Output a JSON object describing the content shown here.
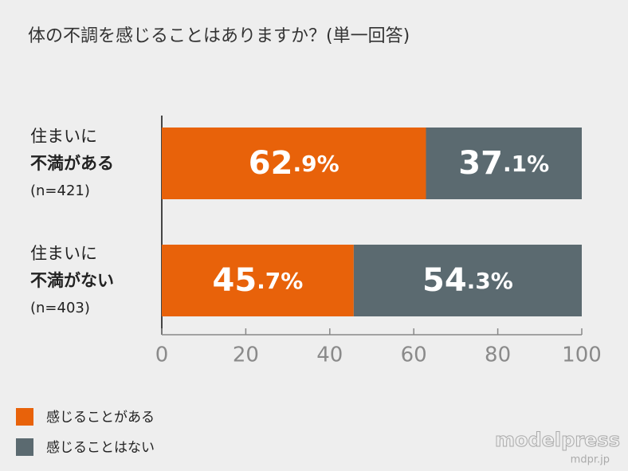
{
  "chart_data": {
    "type": "stacked-bar-horizontal",
    "title": "体の不調を感じることはありますか？(単一回答)",
    "categories": [
      [
        "住まいに",
        "不満がある",
        "(n=421)"
      ],
      [
        "住まいに",
        "不満がない",
        "(n=403)"
      ]
    ],
    "series": [
      {
        "name": "感じることがある",
        "color": "#e8620a",
        "values": [
          62.9,
          45.7
        ],
        "value_labels": [
          "62.9%",
          "45.7%"
        ]
      },
      {
        "name": "感じることはない",
        "color": "#5b6a70",
        "values": [
          37.1,
          54.3
        ],
        "value_labels": [
          "37.1%",
          "54.3%"
        ]
      }
    ],
    "xlim": [
      0,
      100
    ],
    "xticks": [
      0,
      20,
      40,
      60,
      80,
      100
    ],
    "legend": "bottom-left",
    "watermark": [
      "modelpress",
      "mdpr.jp"
    ]
  }
}
